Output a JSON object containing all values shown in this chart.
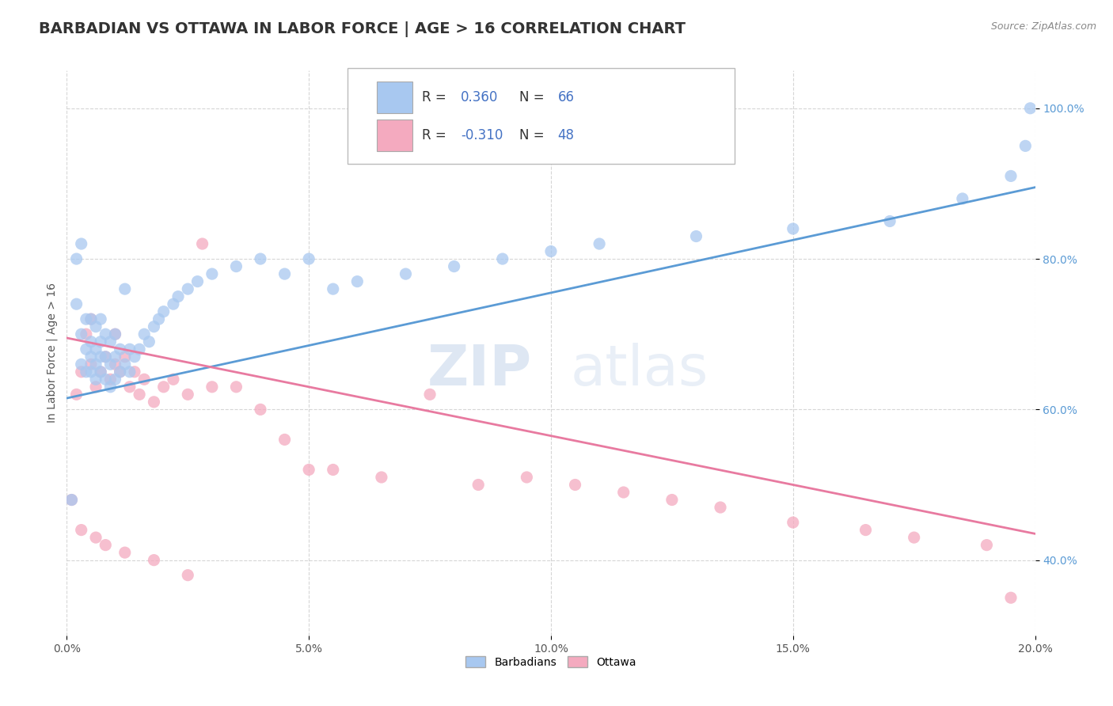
{
  "title": "BARBADIAN VS OTTAWA IN LABOR FORCE | AGE > 16 CORRELATION CHART",
  "source": "Source: ZipAtlas.com",
  "ylabel": "In Labor Force | Age > 16",
  "xlim": [
    0.0,
    0.2
  ],
  "ylim": [
    0.3,
    1.05
  ],
  "yticks": [
    0.4,
    0.6,
    0.8,
    1.0
  ],
  "ytick_labels": [
    "40.0%",
    "60.0%",
    "80.0%",
    "100.0%"
  ],
  "xticks": [
    0.0,
    0.05,
    0.1,
    0.15,
    0.2
  ],
  "xtick_labels": [
    "0.0%",
    "5.0%",
    "10.0%",
    "15.0%",
    "20.0%"
  ],
  "blue_color": "#A8C8F0",
  "pink_color": "#F4AABF",
  "blue_line_color": "#5B9BD5",
  "pink_line_color": "#E87AA0",
  "watermark_zip": "ZIP",
  "watermark_atlas": "atlas",
  "blue_scatter_x": [
    0.001,
    0.002,
    0.002,
    0.003,
    0.003,
    0.003,
    0.004,
    0.004,
    0.004,
    0.005,
    0.005,
    0.005,
    0.005,
    0.006,
    0.006,
    0.006,
    0.006,
    0.007,
    0.007,
    0.007,
    0.007,
    0.008,
    0.008,
    0.008,
    0.009,
    0.009,
    0.009,
    0.01,
    0.01,
    0.01,
    0.011,
    0.011,
    0.012,
    0.012,
    0.013,
    0.013,
    0.014,
    0.015,
    0.016,
    0.017,
    0.018,
    0.019,
    0.02,
    0.022,
    0.023,
    0.025,
    0.027,
    0.03,
    0.035,
    0.04,
    0.045,
    0.05,
    0.055,
    0.06,
    0.07,
    0.08,
    0.09,
    0.1,
    0.11,
    0.13,
    0.15,
    0.17,
    0.185,
    0.195,
    0.198,
    0.199
  ],
  "blue_scatter_y": [
    0.48,
    0.74,
    0.8,
    0.66,
    0.7,
    0.82,
    0.65,
    0.68,
    0.72,
    0.65,
    0.67,
    0.69,
    0.72,
    0.64,
    0.66,
    0.68,
    0.71,
    0.65,
    0.67,
    0.69,
    0.72,
    0.64,
    0.67,
    0.7,
    0.63,
    0.66,
    0.69,
    0.64,
    0.67,
    0.7,
    0.65,
    0.68,
    0.66,
    0.76,
    0.65,
    0.68,
    0.67,
    0.68,
    0.7,
    0.69,
    0.71,
    0.72,
    0.73,
    0.74,
    0.75,
    0.76,
    0.77,
    0.78,
    0.79,
    0.8,
    0.78,
    0.8,
    0.76,
    0.77,
    0.78,
    0.79,
    0.8,
    0.81,
    0.82,
    0.83,
    0.84,
    0.85,
    0.88,
    0.91,
    0.95,
    1.0
  ],
  "pink_scatter_x": [
    0.001,
    0.002,
    0.003,
    0.004,
    0.005,
    0.005,
    0.006,
    0.007,
    0.008,
    0.009,
    0.01,
    0.01,
    0.011,
    0.012,
    0.013,
    0.014,
    0.015,
    0.016,
    0.018,
    0.02,
    0.022,
    0.025,
    0.028,
    0.03,
    0.035,
    0.04,
    0.045,
    0.05,
    0.055,
    0.065,
    0.075,
    0.085,
    0.095,
    0.105,
    0.115,
    0.125,
    0.135,
    0.15,
    0.165,
    0.175,
    0.19,
    0.195,
    0.003,
    0.006,
    0.008,
    0.012,
    0.018,
    0.025
  ],
  "pink_scatter_y": [
    0.48,
    0.62,
    0.65,
    0.7,
    0.66,
    0.72,
    0.63,
    0.65,
    0.67,
    0.64,
    0.66,
    0.7,
    0.65,
    0.67,
    0.63,
    0.65,
    0.62,
    0.64,
    0.61,
    0.63,
    0.64,
    0.62,
    0.82,
    0.63,
    0.63,
    0.6,
    0.56,
    0.52,
    0.52,
    0.51,
    0.62,
    0.5,
    0.51,
    0.5,
    0.49,
    0.48,
    0.47,
    0.45,
    0.44,
    0.43,
    0.42,
    0.35,
    0.44,
    0.43,
    0.42,
    0.41,
    0.4,
    0.38
  ],
  "blue_trend_x": [
    0.0,
    0.2
  ],
  "blue_trend_y": [
    0.615,
    0.895
  ],
  "pink_trend_x": [
    0.0,
    0.2
  ],
  "pink_trend_y": [
    0.695,
    0.435
  ],
  "background_color": "#FFFFFF",
  "grid_color": "#CCCCCC",
  "title_fontsize": 14,
  "axis_fontsize": 10,
  "tick_fontsize": 10,
  "legend_fontsize": 12,
  "legend_color": "#4472C4"
}
